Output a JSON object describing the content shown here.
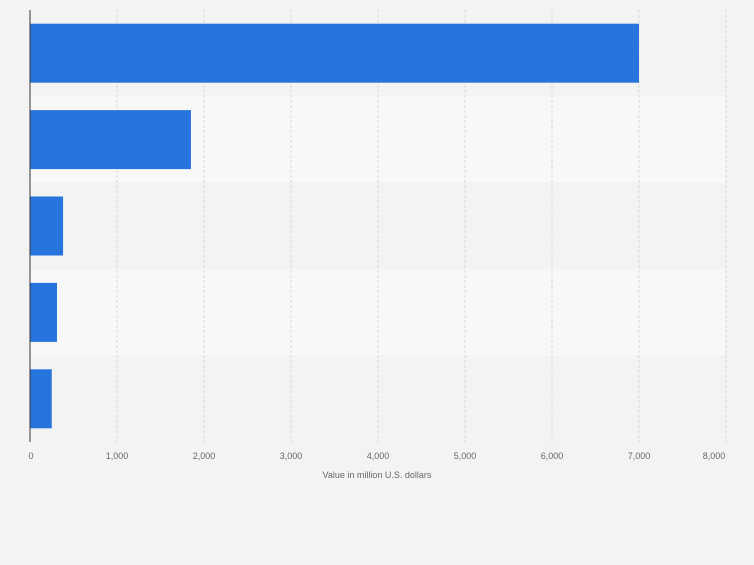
{
  "chart_data": {
    "type": "bar",
    "orientation": "horizontal",
    "categories": [
      "",
      "",
      "",
      "",
      ""
    ],
    "values": [
      7000,
      1850,
      380,
      310,
      250
    ],
    "xlabel": "Value in million U.S. dollars",
    "xlim": [
      0,
      8000
    ],
    "ticks": [
      "0",
      "1,000",
      "2,000",
      "3,000",
      "4,000",
      "5,000",
      "6,000",
      "7,000",
      "8,000"
    ],
    "grid": true,
    "colors": {
      "bar": "#2775dc",
      "band_dark": "#f3f3f3",
      "band_light": "#f8f8f8",
      "gridline": "#d8d8d8",
      "axis": "#333333",
      "text": "#666666"
    }
  }
}
